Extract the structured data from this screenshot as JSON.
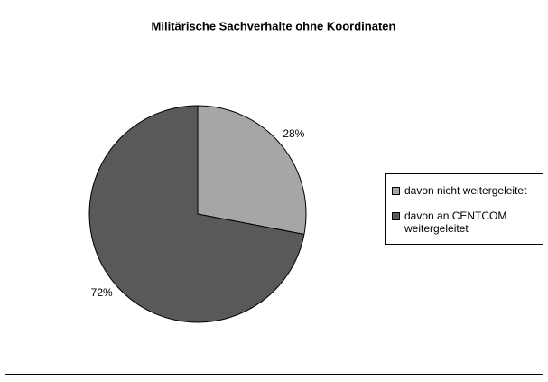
{
  "chart_data": {
    "type": "pie",
    "title": "Militärische Sachverhalte ohne Koordinaten",
    "categories": [
      "davon nicht weitergeleitet",
      "davon an CENTCOM weitergeleitet"
    ],
    "values": [
      28,
      72
    ],
    "value_labels": [
      "28%",
      "72%"
    ],
    "colors": [
      "#a6a6a6",
      "#595959"
    ],
    "legend": "right"
  }
}
